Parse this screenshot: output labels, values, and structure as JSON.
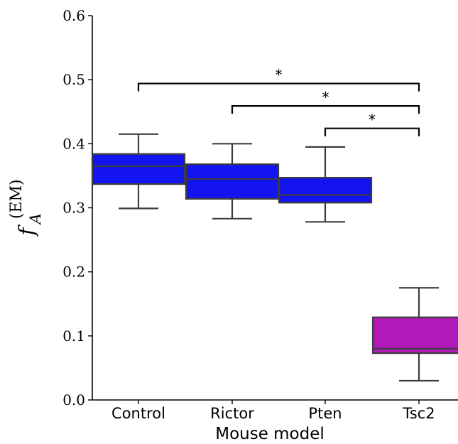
{
  "chart_data": {
    "type": "box",
    "xlabel": "Mouse model",
    "ylabel": {
      "base": "f",
      "subscript": "A",
      "superscript": "(EM)"
    },
    "ylim": [
      0.0,
      0.6
    ],
    "yticks": [
      "0.0",
      "0.1",
      "0.2",
      "0.3",
      "0.4",
      "0.5",
      "0.6"
    ],
    "ytick_values": [
      0.0,
      0.1,
      0.2,
      0.3,
      0.4,
      0.5,
      0.6
    ],
    "categories": [
      "Control",
      "Rictor",
      "Pten",
      "Tsc2"
    ],
    "boxes": [
      {
        "category": "Control",
        "whisker_low": 0.299,
        "q1": 0.337,
        "median": 0.365,
        "q3": 0.384,
        "whisker_high": 0.415,
        "color": "#1414f0"
      },
      {
        "category": "Rictor",
        "whisker_low": 0.283,
        "q1": 0.314,
        "median": 0.345,
        "q3": 0.368,
        "whisker_high": 0.4,
        "color": "#1414f0"
      },
      {
        "category": "Pten",
        "whisker_low": 0.278,
        "q1": 0.308,
        "median": 0.32,
        "q3": 0.347,
        "whisker_high": 0.395,
        "color": "#1414f0"
      },
      {
        "category": "Tsc2",
        "whisker_low": 0.03,
        "q1": 0.073,
        "median": 0.08,
        "q3": 0.129,
        "whisker_high": 0.175,
        "color": "#b01ab8"
      }
    ],
    "significance": [
      {
        "from": "Control",
        "to": "Tsc2",
        "y": 0.494,
        "label": "*"
      },
      {
        "from": "Rictor",
        "to": "Tsc2",
        "y": 0.459,
        "label": "*"
      },
      {
        "from": "Pten",
        "to": "Tsc2",
        "y": 0.424,
        "label": "*"
      }
    ],
    "grid": false,
    "colors": {
      "wildtype_box": "#1414f0",
      "tsc2_box": "#b01ab8",
      "box_edge": "#3d3d3d",
      "axis": "#000000"
    }
  }
}
